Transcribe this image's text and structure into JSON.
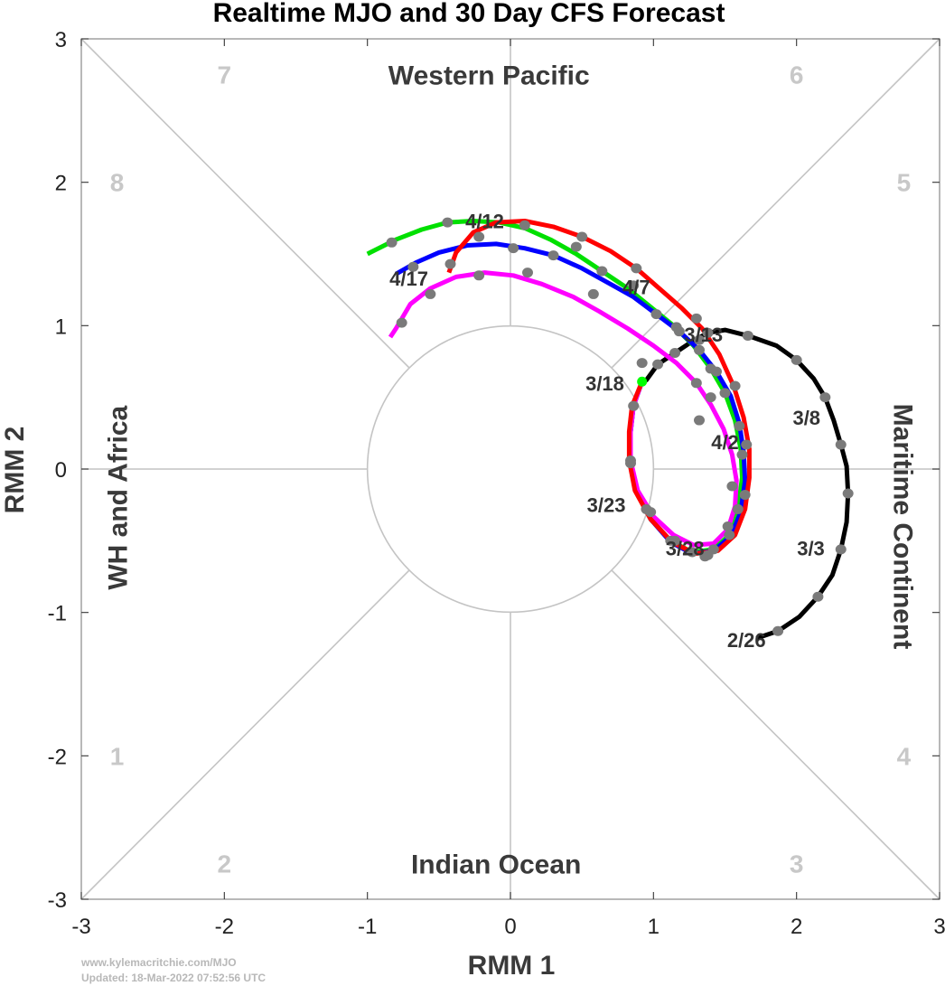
{
  "chart_data": {
    "type": "line",
    "title": "Realtime MJO and 30 Day CFS Forecast",
    "xlabel": "RMM 1",
    "ylabel": "RMM 2",
    "xlim": [
      -3,
      3
    ],
    "ylim": [
      -3,
      3
    ],
    "xticks": [
      "-3",
      "-2",
      "-1",
      "0",
      "1",
      "2",
      "3"
    ],
    "yticks": [
      "-3",
      "-2",
      "-1",
      "0",
      "1",
      "2",
      "3"
    ],
    "grid": "phase diagram with diagonals and unit circle",
    "regions": {
      "top": "Western Pacific",
      "bottom": "Indian Ocean",
      "left": "WH and Africa",
      "right": "Maritime Continent"
    },
    "phases": [
      {
        "label": "1",
        "x": -2.75,
        "y": -2
      },
      {
        "label": "2",
        "x": -2,
        "y": -2.75
      },
      {
        "label": "3",
        "x": 2,
        "y": -2.75
      },
      {
        "label": "4",
        "x": 2.75,
        "y": -2
      },
      {
        "label": "5",
        "x": 2.75,
        "y": 2
      },
      {
        "label": "6",
        "x": 2,
        "y": 2.75
      },
      {
        "label": "7",
        "x": -2,
        "y": 2.75
      },
      {
        "label": "8",
        "x": -2.75,
        "y": 2
      }
    ],
    "series": [
      {
        "kind": "observed",
        "color": "#000000",
        "points": [
          [
            1.72,
            -1.18
          ],
          [
            1.87,
            -1.13
          ],
          [
            2.02,
            -1.03
          ],
          [
            2.15,
            -0.89
          ],
          [
            2.25,
            -0.74
          ],
          [
            2.31,
            -0.56
          ],
          [
            2.35,
            -0.37
          ],
          [
            2.36,
            -0.17
          ],
          [
            2.35,
            0.02
          ],
          [
            2.31,
            0.17
          ],
          [
            2.26,
            0.34
          ],
          [
            2.2,
            0.5
          ],
          [
            2.12,
            0.63
          ],
          [
            2.0,
            0.76
          ],
          [
            1.86,
            0.86
          ],
          [
            1.66,
            0.93
          ],
          [
            1.5,
            0.97
          ],
          [
            1.38,
            0.95
          ],
          [
            1.27,
            0.89
          ],
          [
            1.15,
            0.81
          ],
          [
            1.03,
            0.73
          ],
          [
            0.95,
            0.62
          ],
          [
            0.92,
            0.61
          ]
        ]
      },
      {
        "kind": "forecast",
        "color": "#00e000",
        "points": [
          [
            0.92,
            0.61
          ],
          [
            0.86,
            0.44
          ],
          [
            0.84,
            0.26
          ],
          [
            0.84,
            0.06
          ],
          [
            0.88,
            -0.15
          ],
          [
            0.98,
            -0.35
          ],
          [
            1.12,
            -0.5
          ],
          [
            1.27,
            -0.58
          ],
          [
            1.42,
            -0.56
          ],
          [
            1.53,
            -0.46
          ],
          [
            1.59,
            -0.28
          ],
          [
            1.62,
            -0.06
          ],
          [
            1.61,
            0.14
          ],
          [
            1.57,
            0.34
          ],
          [
            1.5,
            0.53
          ],
          [
            1.4,
            0.7
          ],
          [
            1.28,
            0.86
          ],
          [
            1.14,
            1.0
          ],
          [
            0.98,
            1.13
          ],
          [
            0.82,
            1.26
          ],
          [
            0.64,
            1.38
          ],
          [
            0.46,
            1.5
          ],
          [
            0.28,
            1.6
          ],
          [
            0.1,
            1.68
          ],
          [
            -0.08,
            1.72
          ],
          [
            -0.26,
            1.73
          ],
          [
            -0.44,
            1.72
          ],
          [
            -0.62,
            1.67
          ],
          [
            -0.8,
            1.6
          ],
          [
            -0.98,
            1.51
          ],
          [
            -1.0,
            1.5
          ]
        ]
      },
      {
        "kind": "forecast",
        "color": "#0000ff",
        "points": [
          [
            0.92,
            0.61
          ],
          [
            0.86,
            0.44
          ],
          [
            0.84,
            0.26
          ],
          [
            0.84,
            0.06
          ],
          [
            0.88,
            -0.15
          ],
          [
            0.98,
            -0.35
          ],
          [
            1.12,
            -0.51
          ],
          [
            1.27,
            -0.59
          ],
          [
            1.42,
            -0.57
          ],
          [
            1.54,
            -0.47
          ],
          [
            1.61,
            -0.3
          ],
          [
            1.64,
            -0.08
          ],
          [
            1.63,
            0.12
          ],
          [
            1.6,
            0.32
          ],
          [
            1.54,
            0.51
          ],
          [
            1.44,
            0.68
          ],
          [
            1.32,
            0.83
          ],
          [
            1.18,
            0.96
          ],
          [
            1.02,
            1.08
          ],
          [
            0.86,
            1.2
          ],
          [
            0.68,
            1.3
          ],
          [
            0.5,
            1.4
          ],
          [
            0.3,
            1.49
          ],
          [
            0.1,
            1.54
          ],
          [
            -0.1,
            1.57
          ],
          [
            -0.3,
            1.56
          ],
          [
            -0.5,
            1.51
          ],
          [
            -0.66,
            1.44
          ],
          [
            -0.8,
            1.36
          ]
        ]
      },
      {
        "kind": "forecast",
        "color": "#ff00ff",
        "points": [
          [
            0.92,
            0.61
          ],
          [
            0.86,
            0.44
          ],
          [
            0.84,
            0.26
          ],
          [
            0.84,
            0.06
          ],
          [
            0.89,
            -0.15
          ],
          [
            1.0,
            -0.33
          ],
          [
            1.14,
            -0.46
          ],
          [
            1.28,
            -0.53
          ],
          [
            1.42,
            -0.52
          ],
          [
            1.52,
            -0.42
          ],
          [
            1.57,
            -0.26
          ],
          [
            1.58,
            -0.08
          ],
          [
            1.55,
            0.1
          ],
          [
            1.49,
            0.28
          ],
          [
            1.4,
            0.45
          ],
          [
            1.3,
            0.6
          ],
          [
            1.16,
            0.74
          ],
          [
            1.0,
            0.86
          ],
          [
            0.82,
            0.98
          ],
          [
            0.62,
            1.1
          ],
          [
            0.44,
            1.2
          ],
          [
            0.22,
            1.29
          ],
          [
            0.02,
            1.35
          ],
          [
            -0.18,
            1.37
          ],
          [
            -0.38,
            1.34
          ],
          [
            -0.56,
            1.26
          ],
          [
            -0.7,
            1.15
          ],
          [
            -0.8,
            0.98
          ],
          [
            -0.84,
            0.92
          ]
        ]
      },
      {
        "kind": "forecast",
        "color": "#ff0000",
        "points": [
          [
            0.92,
            0.61
          ],
          [
            0.85,
            0.44
          ],
          [
            0.83,
            0.26
          ],
          [
            0.83,
            0.06
          ],
          [
            0.87,
            -0.15
          ],
          [
            0.98,
            -0.35
          ],
          [
            1.13,
            -0.51
          ],
          [
            1.29,
            -0.59
          ],
          [
            1.45,
            -0.57
          ],
          [
            1.57,
            -0.46
          ],
          [
            1.64,
            -0.28
          ],
          [
            1.67,
            -0.06
          ],
          [
            1.67,
            0.14
          ],
          [
            1.63,
            0.36
          ],
          [
            1.56,
            0.58
          ],
          [
            1.46,
            0.8
          ],
          [
            1.34,
            0.98
          ],
          [
            1.2,
            1.12
          ],
          [
            1.04,
            1.26
          ],
          [
            0.88,
            1.4
          ],
          [
            0.7,
            1.52
          ],
          [
            0.5,
            1.62
          ],
          [
            0.3,
            1.69
          ],
          [
            0.1,
            1.73
          ],
          [
            -0.1,
            1.72
          ],
          [
            -0.26,
            1.65
          ],
          [
            -0.38,
            1.51
          ],
          [
            -0.43,
            1.37
          ]
        ]
      }
    ],
    "dots": [
      [
        1.87,
        -1.13
      ],
      [
        2.15,
        -0.89
      ],
      [
        2.31,
        -0.56
      ],
      [
        2.36,
        -0.17
      ],
      [
        2.31,
        0.17
      ],
      [
        2.2,
        0.5
      ],
      [
        2.0,
        0.76
      ],
      [
        1.66,
        0.93
      ],
      [
        1.38,
        0.95
      ],
      [
        1.15,
        0.81
      ],
      [
        1.03,
        0.73
      ],
      [
        0.86,
        0.44
      ],
      [
        0.84,
        0.06
      ],
      [
        0.84,
        0.04
      ],
      [
        0.98,
        -0.3
      ],
      [
        0.95,
        -0.28
      ],
      [
        1.12,
        -0.5
      ],
      [
        1.15,
        -0.5
      ],
      [
        1.27,
        -0.58
      ],
      [
        1.38,
        -0.6
      ],
      [
        1.36,
        -0.61
      ],
      [
        1.42,
        -0.56
      ],
      [
        1.53,
        -0.46
      ],
      [
        1.52,
        -0.4
      ],
      [
        1.59,
        -0.28
      ],
      [
        1.55,
        -0.12
      ],
      [
        1.64,
        -0.18
      ],
      [
        1.65,
        0.17
      ],
      [
        1.62,
        0.1
      ],
      [
        1.6,
        0.3
      ],
      [
        1.57,
        0.58
      ],
      [
        1.5,
        0.53
      ],
      [
        1.4,
        0.7
      ],
      [
        1.32,
        0.9
      ],
      [
        1.3,
        1.05
      ],
      [
        1.16,
        0.99
      ],
      [
        1.02,
        1.08
      ],
      [
        0.86,
        1.28
      ],
      [
        0.88,
        1.4
      ],
      [
        0.64,
        1.38
      ],
      [
        0.5,
        1.62
      ],
      [
        0.46,
        1.55
      ],
      [
        0.3,
        1.49
      ],
      [
        0.1,
        1.7
      ],
      [
        0.02,
        1.54
      ],
      [
        -0.22,
        1.62
      ],
      [
        -0.42,
        1.43
      ],
      [
        -0.44,
        1.72
      ],
      [
        -0.68,
        1.41
      ],
      [
        -0.83,
        1.58
      ],
      [
        -0.56,
        1.22
      ],
      [
        -0.76,
        1.02
      ],
      [
        1.32,
        0.83
      ],
      [
        1.18,
        0.96
      ],
      [
        1.3,
        0.6
      ],
      [
        1.44,
        0.68
      ],
      [
        1.4,
        0.5
      ],
      [
        0.58,
        1.22
      ],
      [
        0.12,
        1.37
      ],
      [
        -0.22,
        1.35
      ],
      [
        1.32,
        0.34
      ],
      [
        0.92,
        0.74
      ]
    ],
    "start_dot": {
      "x": 0.92,
      "y": 0.61,
      "color": "#00ff00"
    },
    "date_labels": [
      {
        "text": "2/26",
        "x": 1.65,
        "y": -1.19
      },
      {
        "text": "3/3",
        "x": 2.1,
        "y": -0.55
      },
      {
        "text": "3/8",
        "x": 2.07,
        "y": 0.36
      },
      {
        "text": "3/13",
        "x": 1.35,
        "y": 0.94
      },
      {
        "text": "3/18",
        "x": 0.66,
        "y": 0.6
      },
      {
        "text": "3/23",
        "x": 0.67,
        "y": -0.25
      },
      {
        "text": "3/28",
        "x": 1.22,
        "y": -0.55
      },
      {
        "text": "4/2",
        "x": 1.5,
        "y": 0.19
      },
      {
        "text": "4/7",
        "x": 0.88,
        "y": 1.27
      },
      {
        "text": "4/12",
        "x": -0.18,
        "y": 1.73
      },
      {
        "text": "4/17",
        "x": -0.71,
        "y": 1.33
      }
    ]
  },
  "footer": {
    "site": "www.kylemacritchie.com/MJO",
    "updated": "Updated: 18-Mar-2022 07:52:56 UTC"
  }
}
